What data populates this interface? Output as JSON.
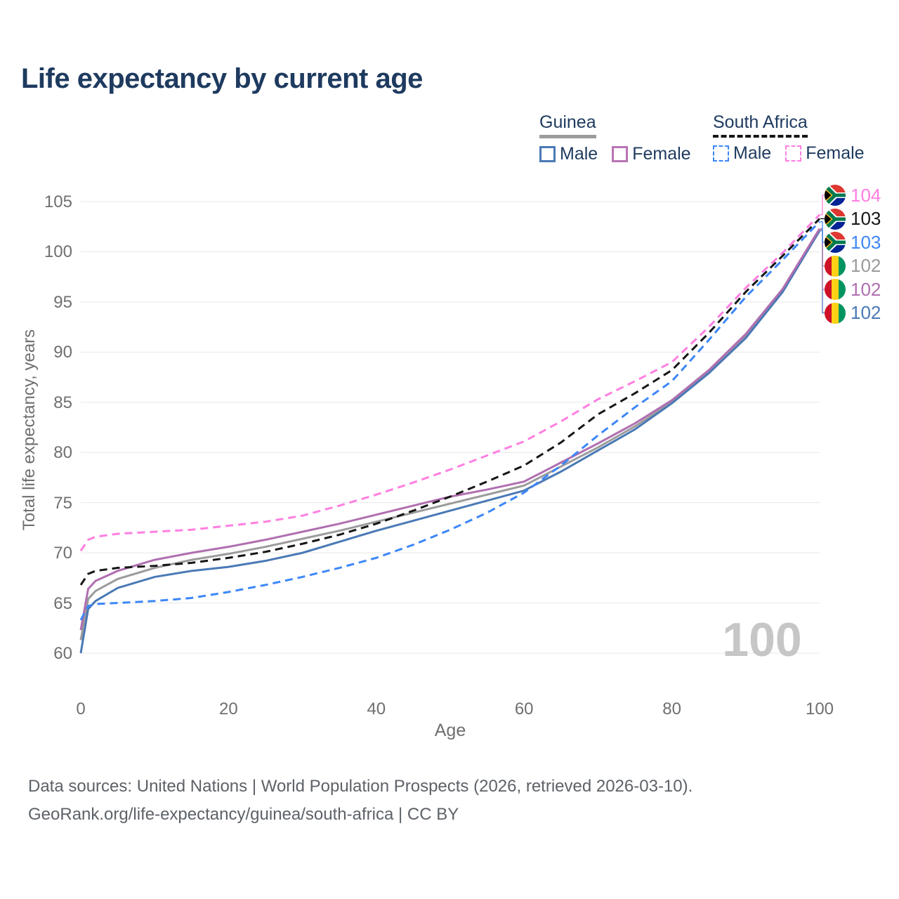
{
  "title": "Life expectancy by current age",
  "legend": {
    "groups": [
      {
        "label": "Guinea",
        "line_style": "solid",
        "underline_color": "#9b9b9b",
        "items": [
          {
            "label": "Male",
            "color": "#4a79b6"
          },
          {
            "label": "Female",
            "color": "#b874b4"
          }
        ]
      },
      {
        "label": "South Africa",
        "line_style": "dashed",
        "underline_color": "#161616",
        "items": [
          {
            "label": "Male",
            "color": "#3d87f7"
          },
          {
            "label": "Female",
            "color": "#ff7fe1"
          }
        ]
      }
    ]
  },
  "chart_data": {
    "type": "line",
    "title": "Life expectancy by current age",
    "xlabel": "Age",
    "ylabel": "Total life expectancy, years",
    "xlim": [
      0,
      100
    ],
    "ylim": [
      60,
      105
    ],
    "xticks": [
      0,
      20,
      40,
      60,
      80,
      100
    ],
    "yticks": [
      60,
      65,
      70,
      75,
      80,
      85,
      90,
      95,
      100,
      105
    ],
    "grid": "horizontal",
    "legend_position": "top-right",
    "watermark": "100",
    "x": [
      0,
      1,
      2,
      5,
      10,
      15,
      20,
      25,
      30,
      35,
      40,
      45,
      50,
      55,
      60,
      65,
      70,
      75,
      80,
      85,
      90,
      95,
      100
    ],
    "series": [
      {
        "name": "Guinea both sexes",
        "slug": "guinea-both",
        "country": "Guinea",
        "sex": "both",
        "color": "#9b9b9b",
        "dash": false,
        "flag": "guinea",
        "end_label": "102",
        "row": 3,
        "values": [
          61.3,
          65.4,
          66.2,
          67.4,
          68.5,
          69.3,
          69.9,
          70.6,
          71.4,
          72.2,
          73.1,
          74.0,
          74.9,
          75.8,
          76.7,
          78.6,
          80.5,
          82.6,
          85.0,
          88.0,
          91.6,
          96.1,
          102.2
        ]
      },
      {
        "name": "Guinea male",
        "slug": "guinea-male",
        "country": "Guinea",
        "sex": "male",
        "color": "#4a79b6",
        "dash": false,
        "flag": "guinea",
        "end_label": "102",
        "row": 5,
        "values": [
          60.0,
          64.4,
          65.2,
          66.5,
          67.6,
          68.2,
          68.6,
          69.2,
          70.0,
          71.1,
          72.2,
          73.2,
          74.2,
          75.2,
          76.2,
          78.1,
          80.2,
          82.3,
          84.9,
          87.9,
          91.4,
          96.0,
          102.1
        ]
      },
      {
        "name": "Guinea female",
        "slug": "guinea-female",
        "country": "Guinea",
        "sex": "female",
        "color": "#b06fb0",
        "dash": false,
        "flag": "guinea",
        "end_label": "102",
        "row": 4,
        "values": [
          62.3,
          66.4,
          67.2,
          68.2,
          69.3,
          70.0,
          70.6,
          71.3,
          72.1,
          72.9,
          73.8,
          74.7,
          75.6,
          76.3,
          77.1,
          79.0,
          80.9,
          82.9,
          85.2,
          88.2,
          91.8,
          96.3,
          102.3
        ]
      },
      {
        "name": "South Africa both sexes",
        "slug": "south-africa-both",
        "country": "South Africa",
        "sex": "both",
        "color": "#161616",
        "dash": true,
        "flag": "south-africa",
        "end_label": "103",
        "row": 1,
        "values": [
          66.8,
          67.9,
          68.2,
          68.5,
          68.7,
          69.0,
          69.5,
          70.1,
          70.9,
          71.8,
          72.9,
          74.2,
          75.6,
          77.1,
          78.7,
          81.0,
          83.8,
          85.9,
          88.2,
          91.9,
          96.0,
          99.6,
          103.3
        ]
      },
      {
        "name": "South Africa male",
        "slug": "south-africa-male",
        "country": "South Africa",
        "sex": "male",
        "color": "#3d87f7",
        "dash": true,
        "flag": "south-africa",
        "end_label": "103",
        "row": 2,
        "values": [
          63.3,
          64.7,
          64.9,
          65.0,
          65.2,
          65.5,
          66.1,
          66.8,
          67.6,
          68.5,
          69.5,
          70.8,
          72.3,
          74.0,
          76.0,
          78.7,
          81.7,
          84.5,
          87.1,
          91.2,
          95.5,
          99.2,
          103.0
        ]
      },
      {
        "name": "South Africa female",
        "slug": "south-africa-female",
        "country": "South Africa",
        "sex": "female",
        "color": "#ff7fe1",
        "dash": true,
        "flag": "south-africa",
        "end_label": "104",
        "row": 0,
        "values": [
          70.2,
          71.3,
          71.6,
          71.9,
          72.1,
          72.3,
          72.7,
          73.1,
          73.7,
          74.7,
          75.8,
          77.0,
          78.3,
          79.7,
          81.1,
          83.1,
          85.3,
          87.1,
          89.0,
          92.5,
          96.4,
          99.9,
          103.7
        ]
      }
    ]
  },
  "footer": {
    "line1": "Data sources: United Nations | World Population Prospects (2026, retrieved 2026-03-10).",
    "line2": "GeoRank.org/life-expectancy/guinea/south-africa | CC BY"
  }
}
